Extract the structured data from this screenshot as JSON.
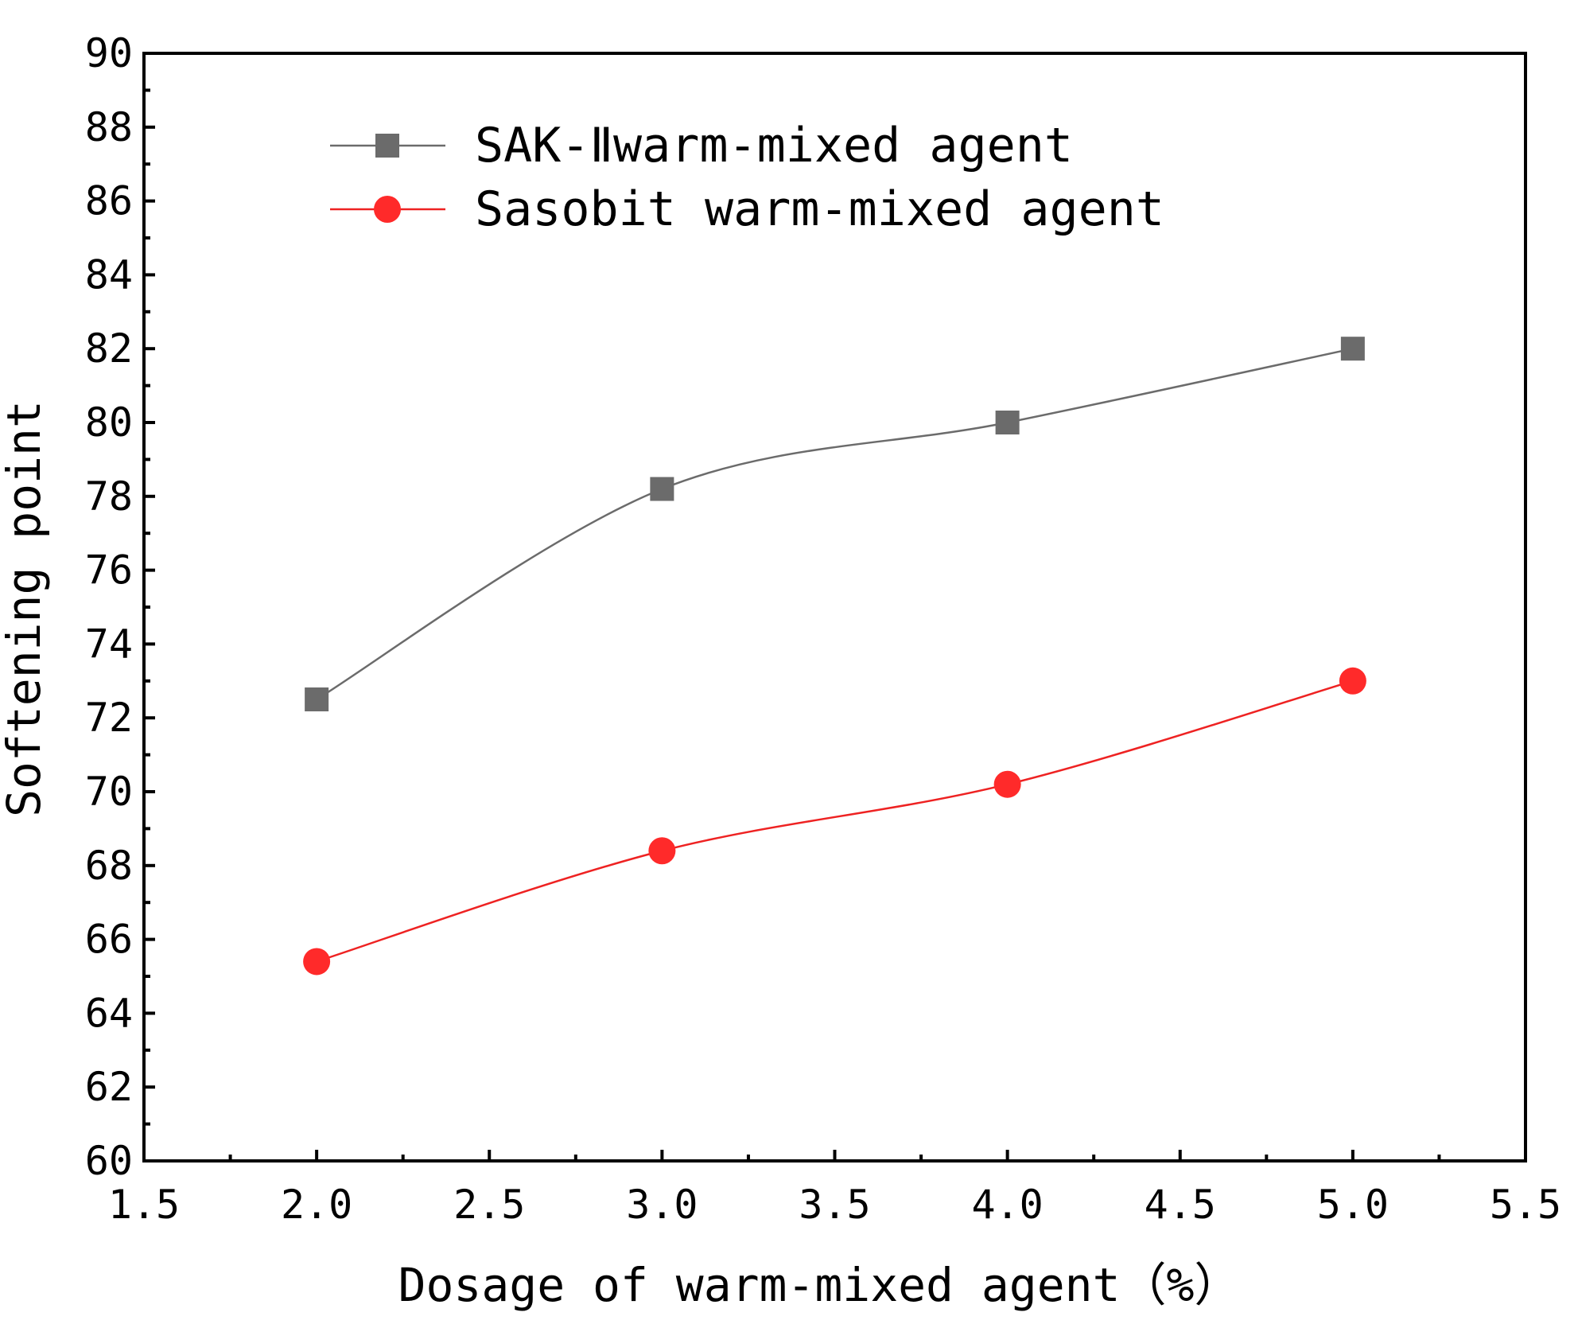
{
  "chart_data": {
    "type": "line",
    "title": "",
    "xlabel": "Dosage of warm-mixed agent（%）",
    "ylabel": "Softening point",
    "xlim": [
      1.5,
      5.5
    ],
    "ylim": [
      60,
      90
    ],
    "x_ticks": [
      "1.5",
      "2.0",
      "2.5",
      "3.0",
      "3.5",
      "4.0",
      "4.5",
      "5.0",
      "5.5"
    ],
    "y_ticks": [
      "60",
      "62",
      "64",
      "66",
      "68",
      "70",
      "72",
      "74",
      "76",
      "78",
      "80",
      "82",
      "84",
      "86",
      "88",
      "90"
    ],
    "legend_position": "top-left",
    "grid": false,
    "series": [
      {
        "name": "SAK-Ⅱwarm-mixed agent",
        "marker": "square",
        "color": "#6b6b6b",
        "line_color": "#6b6b6b",
        "x": [
          2.0,
          3.0,
          4.0,
          5.0
        ],
        "values": [
          72.5,
          78.2,
          80.0,
          82.0
        ]
      },
      {
        "name": "Sasobit warm-mixed agent",
        "marker": "circle",
        "color": "#ff2a2a",
        "line_color": "#ee2222",
        "x": [
          2.0,
          3.0,
          4.0,
          5.0
        ],
        "values": [
          65.4,
          68.4,
          70.2,
          73.0
        ]
      }
    ]
  }
}
